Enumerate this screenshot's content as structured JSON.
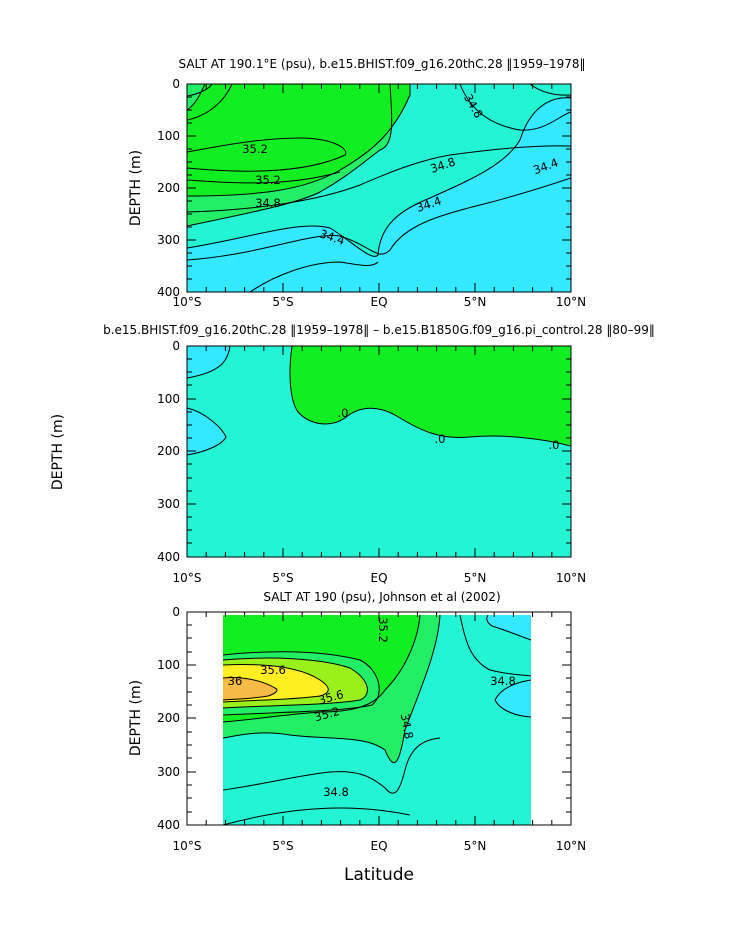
{
  "figure": {
    "xlabel": "Latitude",
    "colors": {
      "cyan": "#33e8ff",
      "aqua": "#22f4d4",
      "green_light": "#22ee66",
      "green": "#11ee22",
      "yellowgreen": "#99f01a",
      "yellow": "#ffee22",
      "orange": "#f5bb44",
      "contour": "#000000"
    }
  },
  "chart_data": [
    {
      "type": "contour",
      "title": "SALT AT 190.1°E (psu), b.e15.BHIST.f09_g16.20thC.28 ‖1959–1978‖",
      "ylabel": "DEPTH (m)",
      "xlim": [
        -10,
        10
      ],
      "ylim": [
        0,
        400
      ],
      "y_inverted": true,
      "xticks": [
        "10°S",
        "5°S",
        "EQ",
        "5°N",
        "10°N"
      ],
      "yticks": [
        "0",
        "100",
        "200",
        "300",
        "400"
      ],
      "contour_levels": [
        "34.4",
        "34.6",
        "34.8",
        "35.0",
        "35.2"
      ],
      "contour_labels": [
        "35.2",
        "35.2",
        "34.8",
        "34.8",
        "34.8",
        "34.4",
        "34.4",
        "34.4"
      ]
    },
    {
      "type": "contour",
      "title": "b.e15.BHIST.f09_g16.20thC.28 ‖1959–1978‖ – b.e15.B1850G.f09_g16.pi_control.28 ‖80–99‖",
      "ylabel": "DEPTH (m)",
      "xlim": [
        -10,
        10
      ],
      "ylim": [
        0,
        400
      ],
      "y_inverted": true,
      "xticks": [
        "10°S",
        "5°S",
        "EQ",
        "5°N",
        "10°N"
      ],
      "yticks": [
        "0",
        "100",
        "200",
        "300",
        "400"
      ],
      "contour_levels": [
        "-0.1",
        "0"
      ],
      "contour_labels": [
        ".0",
        ".0",
        ".0"
      ]
    },
    {
      "type": "contour",
      "title": "SALT AT 190 (psu), Johnson et al (2002)",
      "ylabel": "DEPTH (m)",
      "xlim": [
        -10,
        10
      ],
      "ylim": [
        0,
        400
      ],
      "y_inverted": true,
      "data_xrange": [
        -8,
        8
      ],
      "xticks": [
        "10°S",
        "5°S",
        "EQ",
        "5°N",
        "10°N"
      ],
      "yticks": [
        "0",
        "100",
        "200",
        "300",
        "400"
      ],
      "contour_levels": [
        "34.8",
        "35.0",
        "35.2",
        "35.4",
        "35.6",
        "35.8",
        "36.0"
      ],
      "contour_labels": [
        "35.2",
        "35.6",
        "36",
        "35.6",
        "35.2",
        "34.8",
        "34.8",
        "34.8"
      ]
    }
  ]
}
